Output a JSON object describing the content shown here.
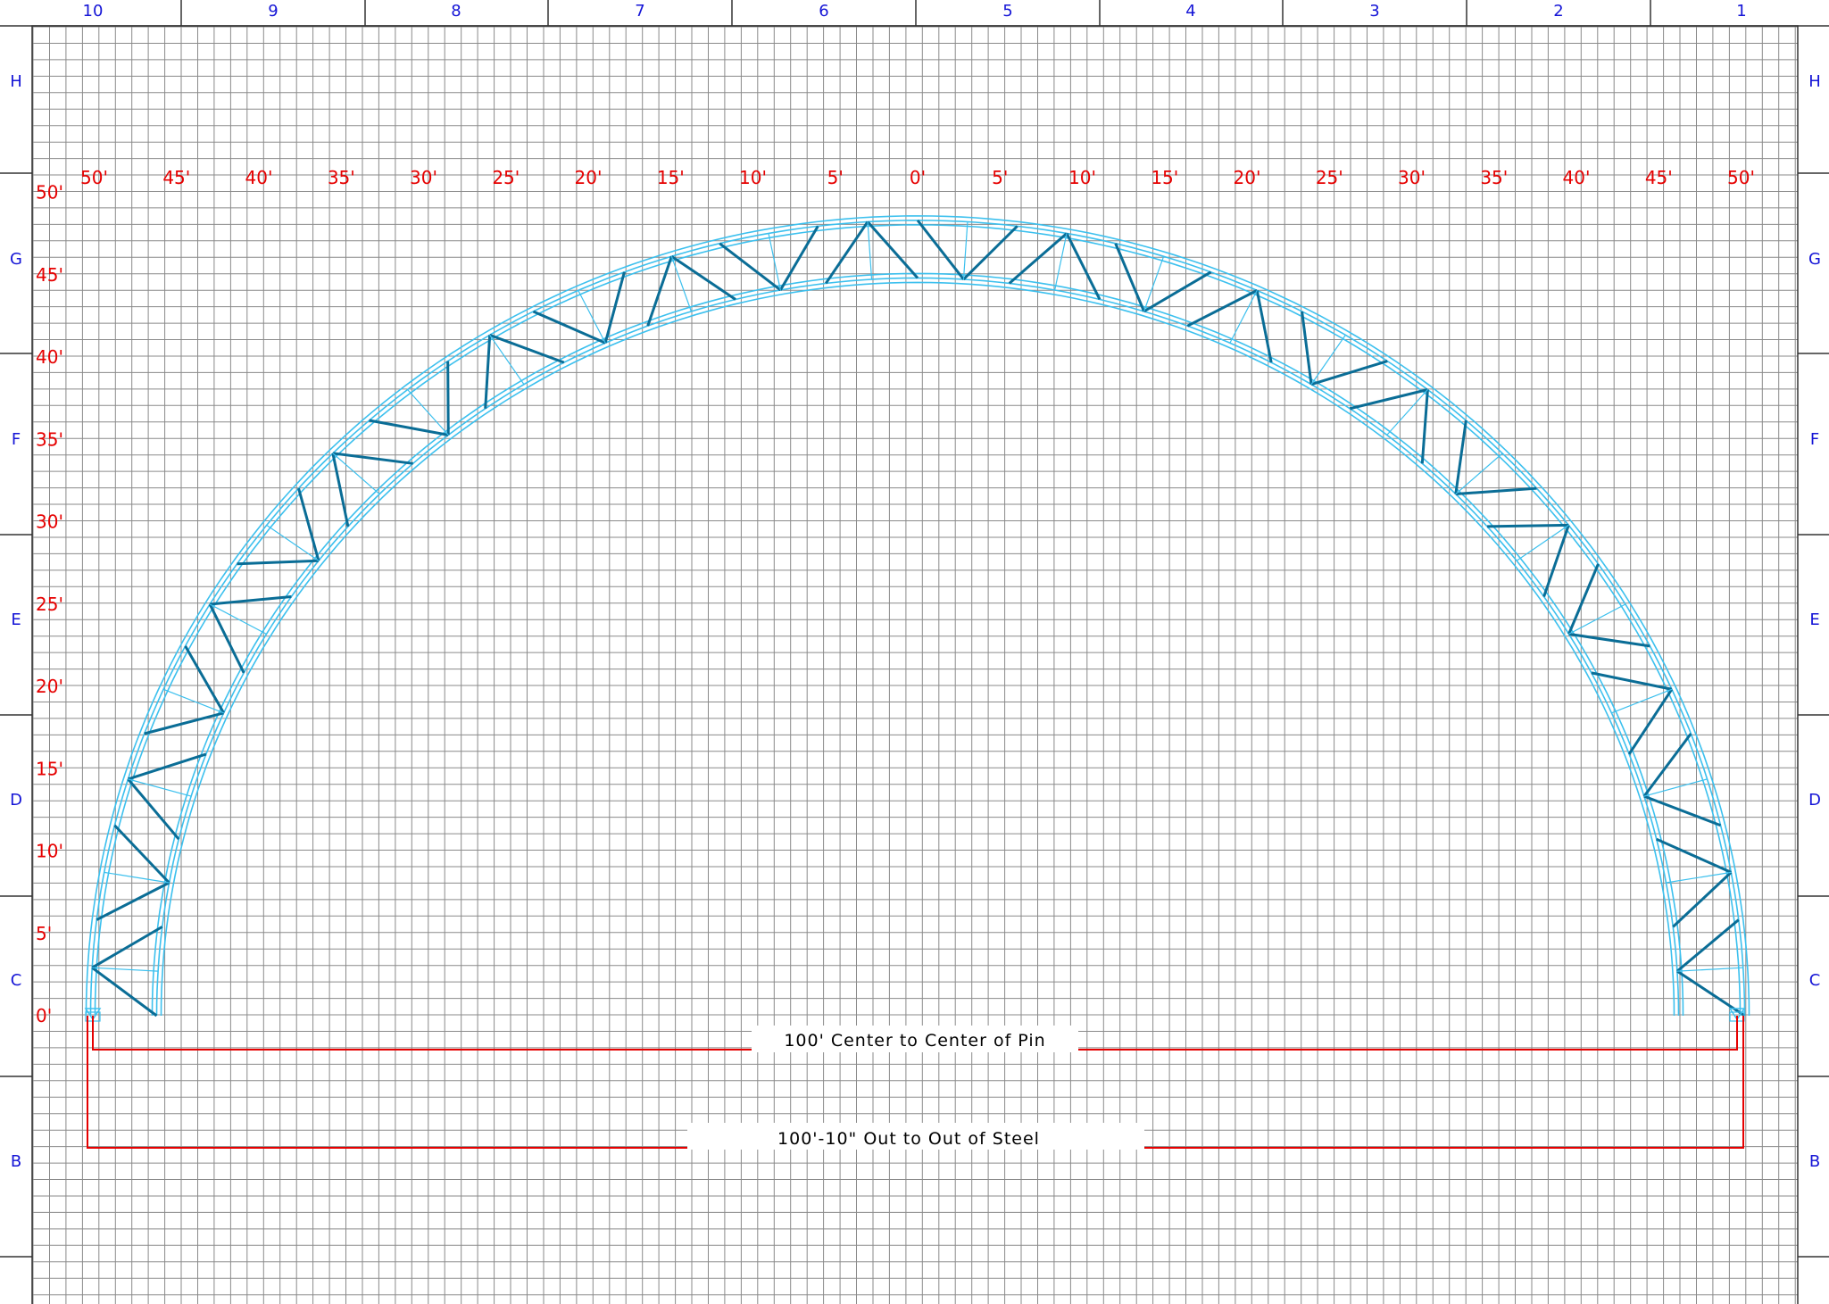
{
  "drawing": {
    "border_columns": [
      "10",
      "9",
      "8",
      "7",
      "6",
      "5",
      "4",
      "3",
      "2",
      "1"
    ],
    "border_rows": [
      "H",
      "G",
      "F",
      "E",
      "D",
      "C",
      "B"
    ],
    "horizontal_scale_labels": [
      "50'",
      "45'",
      "40'",
      "35'",
      "30'",
      "25'",
      "20'",
      "15'",
      "10'",
      "5'",
      "0'",
      "5'",
      "10'",
      "15'",
      "20'",
      "25'",
      "30'",
      "35'",
      "40'",
      "45'",
      "50'"
    ],
    "vertical_scale_labels": [
      "50'",
      "45'",
      "40'",
      "35'",
      "30'",
      "25'",
      "20'",
      "15'",
      "10'",
      "5'",
      "0'"
    ],
    "dimensions": {
      "pin_to_pin": "100' Center to Center of Pin",
      "out_to_out": "100'-10\" Out to Out of Steel"
    },
    "colors": {
      "zone_text": "#1414d6",
      "dimension": "#e60000",
      "truss_light": "#3cc0ee",
      "truss_dark": "#0a6d96",
      "grid": "#8a8a8a"
    }
  }
}
